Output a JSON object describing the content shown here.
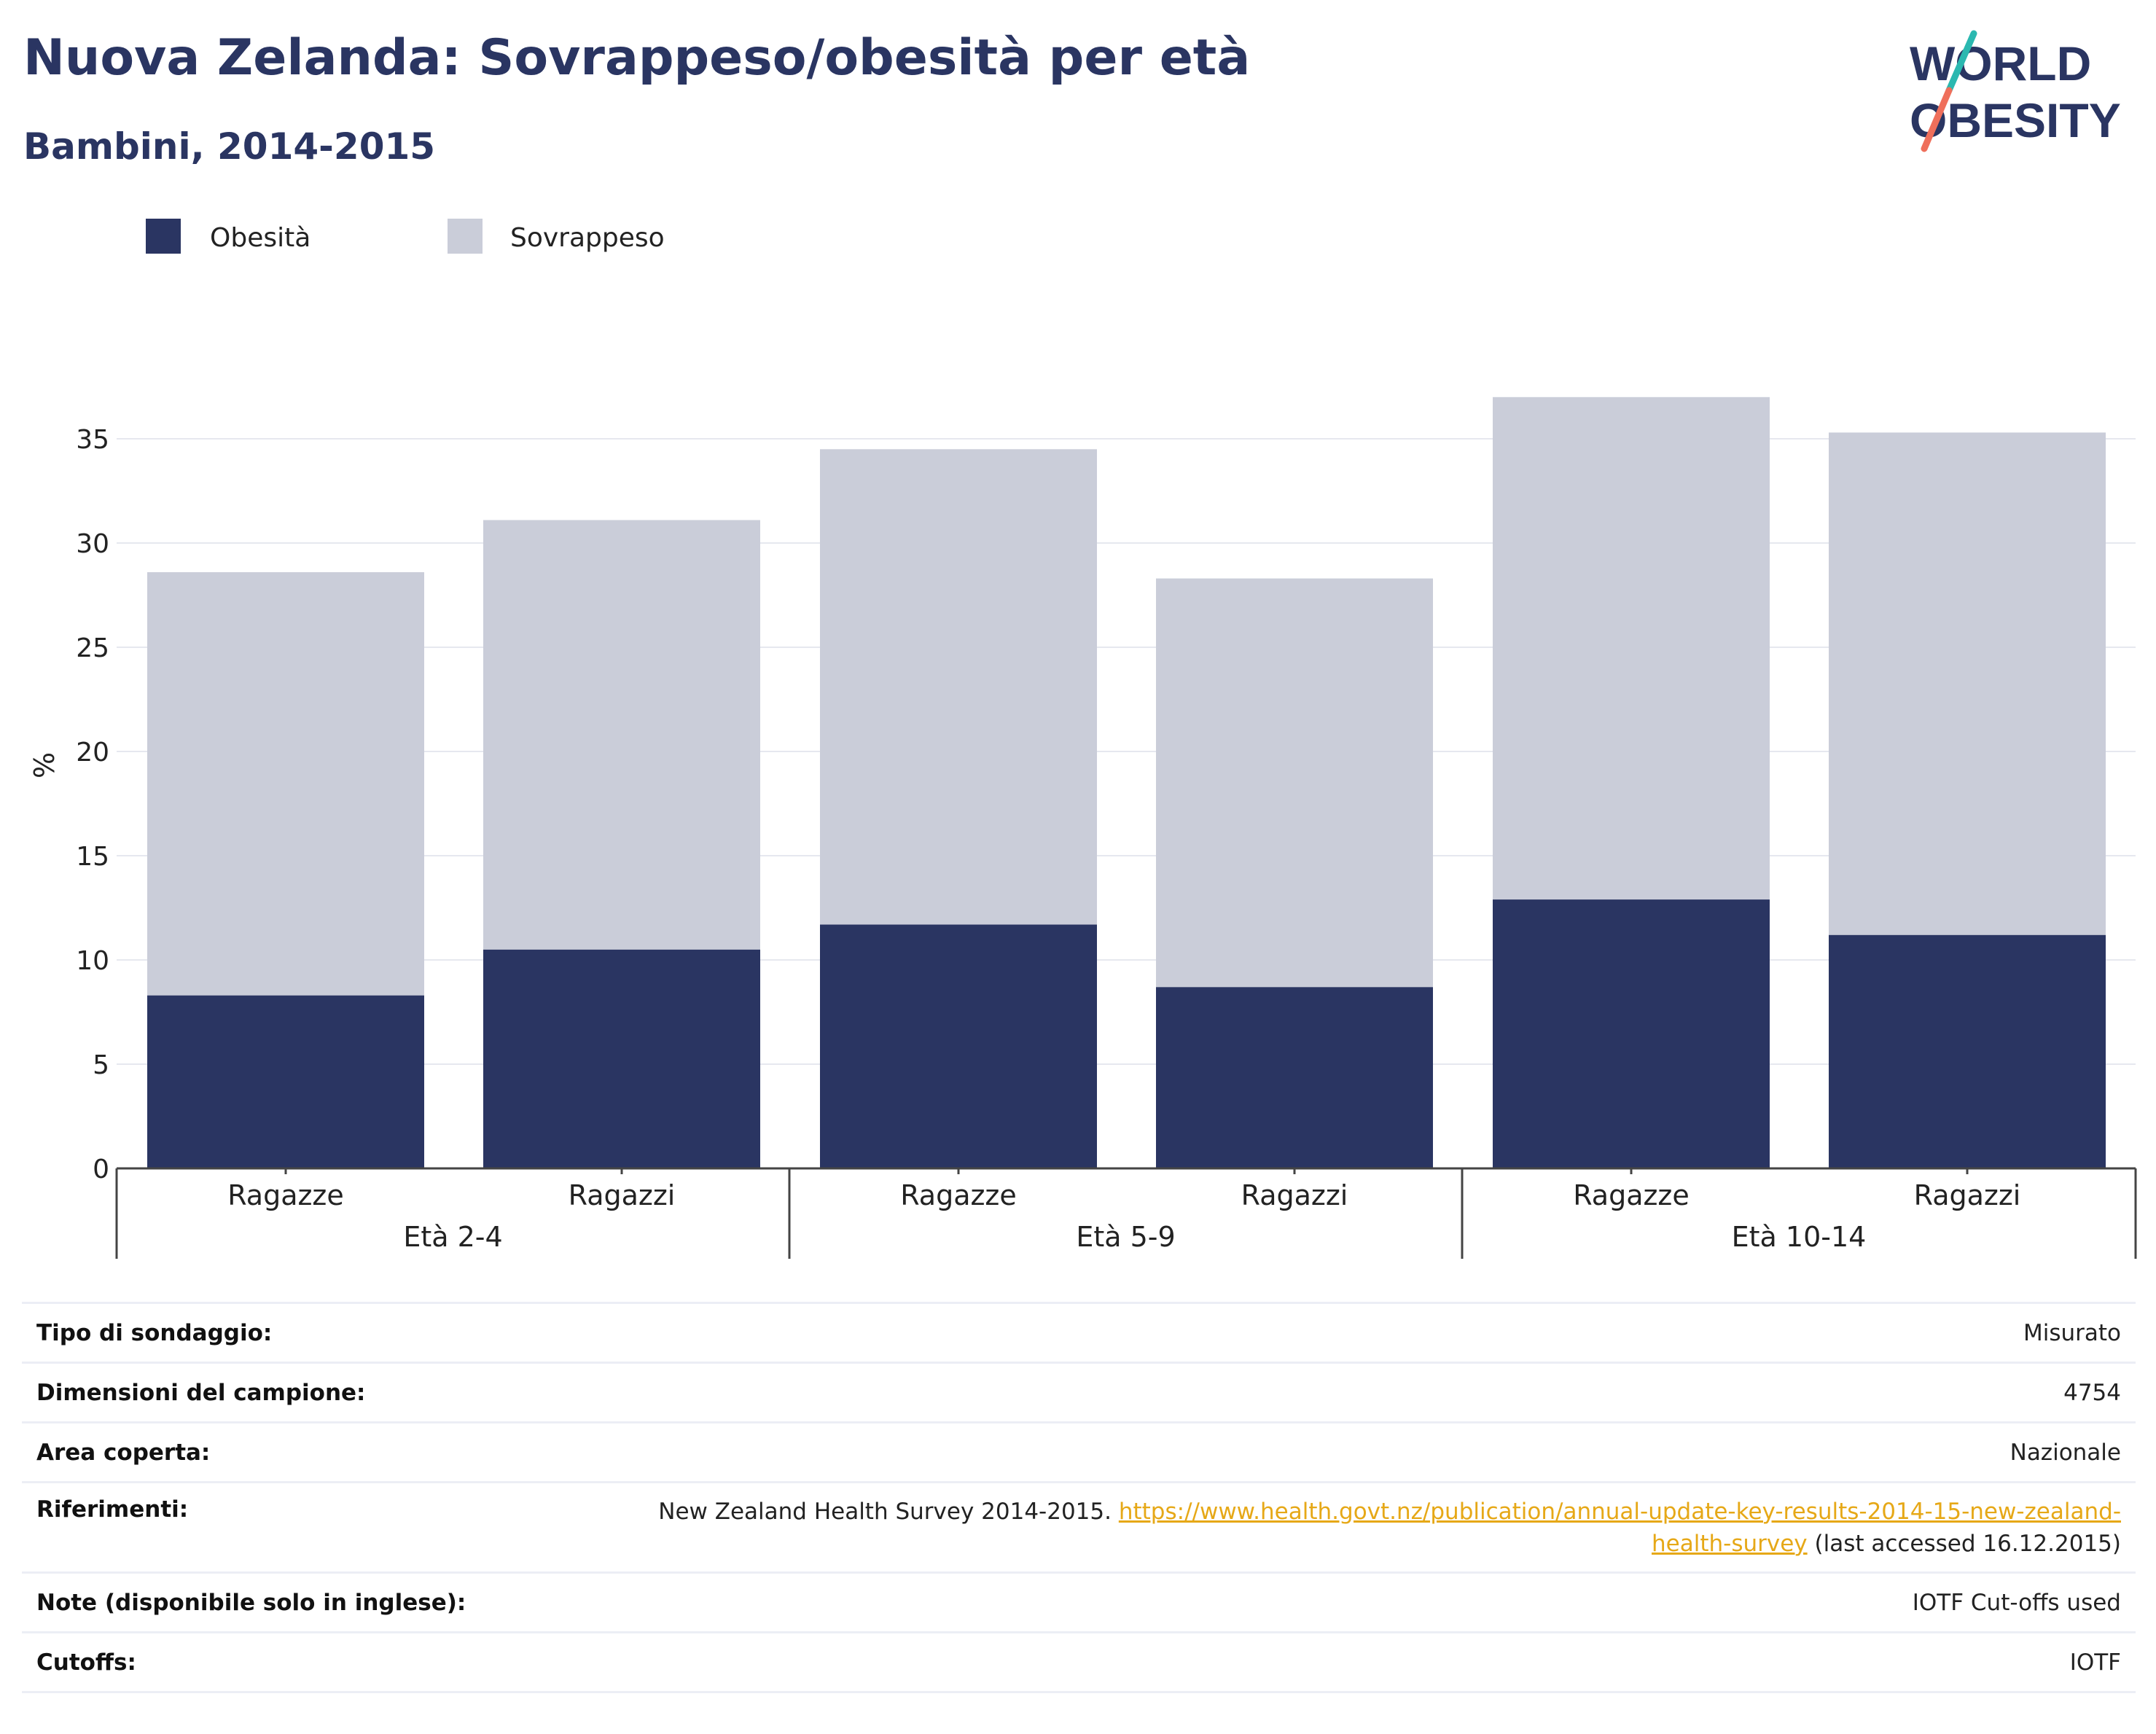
{
  "header": {
    "title": "Nuova Zelanda: Sovrappeso/obesità per età",
    "subtitle": "Bambini, 2014-2015",
    "logo_line1": "WORLD",
    "logo_line2": "OBESITY"
  },
  "colors": {
    "obesity": "#2a3562",
    "overweight": "#cacdd9",
    "link": "#e6a817",
    "logo_teal": "#2bb8b0",
    "logo_coral": "#ef6f5b"
  },
  "chart_data": {
    "type": "bar",
    "stacked": true,
    "ylabel": "%",
    "ylim": [
      0,
      37
    ],
    "yticks": [
      0,
      5,
      10,
      15,
      20,
      25,
      30,
      35
    ],
    "grid": true,
    "legend_position": "top-left",
    "groups": [
      {
        "label": "Età 2-4",
        "categories": [
          "Ragazze",
          "Ragazzi"
        ]
      },
      {
        "label": "Età 5-9",
        "categories": [
          "Ragazze",
          "Ragazzi"
        ]
      },
      {
        "label": "Età 10-14",
        "categories": [
          "Ragazze",
          "Ragazzi"
        ]
      }
    ],
    "series": [
      {
        "name": "Obesità",
        "values": [
          8.3,
          10.5,
          11.7,
          8.7,
          12.9,
          11.2
        ]
      },
      {
        "name": "Sovrappeso",
        "values": [
          20.3,
          20.6,
          22.8,
          19.6,
          24.1,
          24.1
        ]
      }
    ]
  },
  "info": {
    "survey_type_label": "Tipo di sondaggio:",
    "survey_type_value": "Misurato",
    "sample_size_label": "Dimensioni del campione:",
    "sample_size_value": "4754",
    "area_label": "Area coperta:",
    "area_value": "Nazionale",
    "references_label": "Riferimenti:",
    "references_text": "New Zealand Health Survey 2014-2015.",
    "references_link_1": "https://www.health.govt.nz/publication/annual-update-key-results-2014-15-new-zealand-",
    "references_link_2": "health-survey",
    "references_suffix": "(last accessed 16.12.2015)",
    "notes_label": "Note (disponibile solo in inglese):",
    "notes_value": "IOTF Cut-offs used",
    "cutoffs_label": "Cutoffs:",
    "cutoffs_value": "IOTF"
  }
}
